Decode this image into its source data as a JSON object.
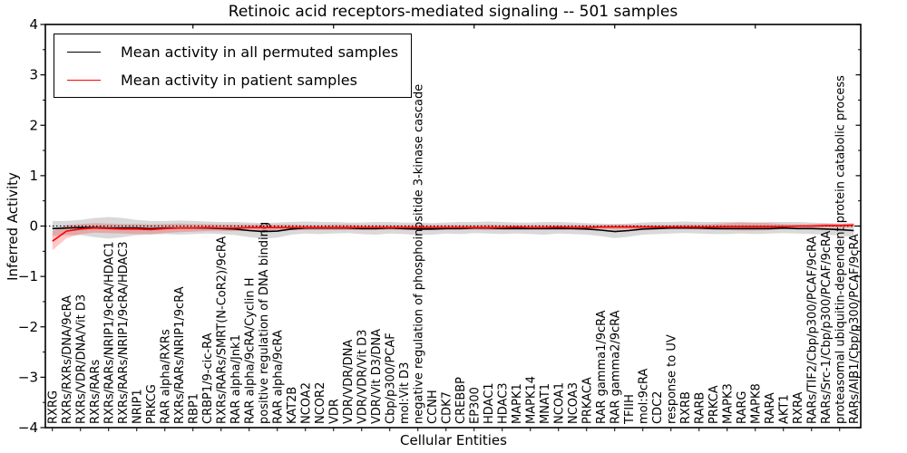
{
  "chart_data": {
    "type": "line",
    "title": "Retinoic acid receptors-mediated signaling -- 501 samples",
    "xlabel": "Cellular Entities",
    "ylabel": "Inferred Activity",
    "ylim": [
      -4,
      4
    ],
    "yticks": [
      4,
      3,
      2,
      1,
      0,
      -1,
      -2,
      -3,
      -4
    ],
    "y_minor_step": 0.5,
    "grid": false,
    "zero_reference_line": {
      "style": "dotted",
      "color": "#000000",
      "y": 0
    },
    "legend_position": "upper left",
    "categories": [
      "RXRG",
      "RXRs/RXRs/DNA/9cRA",
      "RXRs/VDR/DNA/Vit D3",
      "RXRs/RARs",
      "RXRs/RARs/NRIP1/9cRA/HDAC1",
      "RXRs/RARs/NRIP1/9cRA/HDAC3",
      "NRIP1",
      "PRKCG",
      "RAR alpha/RXRs",
      "RXRs/RARs/NRIP1/9cRA",
      "RBP1",
      "CRBP1/9-cic-RA",
      "RXRs/RARs/SMRT(N-CoR2)/9cRA",
      "RAR alpha/Jnk1",
      "RAR alpha/9cRA/Cyclin H",
      "positive regulation of DNA binding",
      "RAR alpha/9cRA",
      "KAT2B",
      "NCOA2",
      "NCOR2",
      "VDR",
      "VDR/VDR/DNA",
      "VDR/VDR/Vit D3",
      "VDR/Vit D3/DNA",
      "Cbp/p300/PCAF",
      "mol:Vit D3",
      "negative regulation of phosphoinositide 3-kinase cascade",
      "CCNH",
      "CDK7",
      "CREBBP",
      "EP300",
      "HDAC1",
      "HDAC3",
      "MAPK1",
      "MAPK14",
      "MNAT1",
      "NCOA1",
      "NCOA3",
      "PRKACA",
      "RAR gamma1/9cRA",
      "RAR gamma2/9cRA",
      "TFIIH",
      "mol:9cRA",
      "CDC2",
      "response to UV",
      "RXRB",
      "RARB",
      "PRKCA",
      "MAPK3",
      "RARG",
      "MAPK8",
      "RARA",
      "AKT1",
      "RXRA",
      "RARs/TIF2/Cbp/p300/PCAF/9cRA",
      "RARs/Src-1/Cbp/p300/PCAF/9cRA",
      "proteasomal ubiquitin-dependent protein catabolic process",
      "RARs/AIB1/Cbp/p300/PCAF/9cRA"
    ],
    "series": [
      {
        "name": "Mean activity in all permuted samples",
        "color": "#000000",
        "band_color": "#000000",
        "band_opacity": 0.15,
        "values": [
          -0.05,
          -0.04,
          -0.03,
          -0.03,
          -0.04,
          -0.04,
          -0.04,
          -0.05,
          -0.04,
          -0.04,
          -0.04,
          -0.04,
          -0.05,
          -0.06,
          -0.09,
          -0.11,
          -0.1,
          -0.06,
          -0.04,
          -0.04,
          -0.04,
          -0.04,
          -0.05,
          -0.05,
          -0.04,
          -0.05,
          -0.06,
          -0.06,
          -0.05,
          -0.05,
          -0.04,
          -0.04,
          -0.05,
          -0.05,
          -0.05,
          -0.05,
          -0.05,
          -0.05,
          -0.06,
          -0.08,
          -0.11,
          -0.09,
          -0.06,
          -0.05,
          -0.04,
          -0.04,
          -0.04,
          -0.05,
          -0.05,
          -0.05,
          -0.05,
          -0.05,
          -0.04,
          -0.05,
          -0.05,
          -0.06,
          -0.07,
          -0.09
        ],
        "band_upper": [
          0.1,
          0.1,
          0.12,
          0.16,
          0.18,
          0.16,
          0.12,
          0.1,
          0.1,
          0.11,
          0.1,
          0.09,
          0.08,
          0.08,
          0.07,
          0.06,
          0.07,
          0.08,
          0.09,
          0.08,
          0.08,
          0.07,
          0.07,
          0.08,
          0.08,
          0.07,
          0.07,
          0.06,
          0.07,
          0.08,
          0.08,
          0.09,
          0.08,
          0.07,
          0.07,
          0.08,
          0.08,
          0.07,
          0.06,
          0.05,
          0.04,
          0.05,
          0.07,
          0.08,
          0.08,
          0.09,
          0.08,
          0.08,
          0.08,
          0.08,
          0.07,
          0.08,
          0.08,
          0.08,
          0.07,
          0.06,
          0.05,
          0.05
        ],
        "band_lower": [
          -0.2,
          -0.18,
          -0.18,
          -0.22,
          -0.25,
          -0.22,
          -0.18,
          -0.17,
          -0.16,
          -0.17,
          -0.16,
          -0.15,
          -0.16,
          -0.18,
          -0.22,
          -0.25,
          -0.23,
          -0.17,
          -0.15,
          -0.16,
          -0.15,
          -0.14,
          -0.16,
          -0.17,
          -0.15,
          -0.16,
          -0.18,
          -0.17,
          -0.15,
          -0.16,
          -0.14,
          -0.15,
          -0.16,
          -0.15,
          -0.16,
          -0.17,
          -0.15,
          -0.16,
          -0.17,
          -0.2,
          -0.24,
          -0.21,
          -0.17,
          -0.16,
          -0.15,
          -0.14,
          -0.15,
          -0.16,
          -0.16,
          -0.15,
          -0.16,
          -0.15,
          -0.14,
          -0.15,
          -0.16,
          -0.17,
          -0.19,
          -0.22
        ]
      },
      {
        "name": "Mean activity in patient samples",
        "color": "#ff0000",
        "band_color": "#ff0000",
        "band_opacity": 0.22,
        "values": [
          -0.3,
          -0.1,
          -0.06,
          -0.04,
          -0.05,
          -0.06,
          -0.06,
          -0.07,
          -0.05,
          -0.04,
          -0.04,
          -0.03,
          -0.04,
          -0.04,
          -0.03,
          -0.03,
          -0.03,
          -0.03,
          -0.03,
          -0.03,
          -0.03,
          -0.03,
          -0.03,
          -0.03,
          -0.03,
          -0.03,
          -0.03,
          -0.03,
          -0.03,
          -0.03,
          -0.03,
          -0.03,
          -0.03,
          -0.02,
          -0.03,
          -0.03,
          -0.02,
          -0.03,
          -0.03,
          -0.02,
          -0.02,
          -0.02,
          -0.02,
          -0.02,
          -0.02,
          -0.02,
          -0.02,
          -0.02,
          -0.01,
          -0.01,
          -0.01,
          -0.01,
          -0.01,
          0.0,
          0.0,
          0.01,
          0.01,
          0.02
        ],
        "band_upper": [
          -0.1,
          0.02,
          0.04,
          0.06,
          0.05,
          0.04,
          0.04,
          0.03,
          0.04,
          0.05,
          0.04,
          0.04,
          0.03,
          0.03,
          0.03,
          0.03,
          0.03,
          0.03,
          0.02,
          0.02,
          0.03,
          0.03,
          0.02,
          0.02,
          0.02,
          0.02,
          0.02,
          0.02,
          0.02,
          0.02,
          0.02,
          0.03,
          0.02,
          0.02,
          0.02,
          0.02,
          0.02,
          0.02,
          0.02,
          0.02,
          0.03,
          0.03,
          0.02,
          0.02,
          0.02,
          0.03,
          0.03,
          0.04,
          0.06,
          0.07,
          0.07,
          0.06,
          0.04,
          0.03,
          0.04,
          0.05,
          0.05,
          0.06
        ],
        "band_lower": [
          -0.48,
          -0.24,
          -0.16,
          -0.13,
          -0.14,
          -0.15,
          -0.16,
          -0.16,
          -0.14,
          -0.12,
          -0.11,
          -0.1,
          -0.1,
          -0.1,
          -0.09,
          -0.09,
          -0.08,
          -0.08,
          -0.08,
          -0.08,
          -0.08,
          -0.08,
          -0.08,
          -0.08,
          -0.07,
          -0.08,
          -0.08,
          -0.08,
          -0.07,
          -0.07,
          -0.07,
          -0.08,
          -0.07,
          -0.07,
          -0.07,
          -0.07,
          -0.07,
          -0.07,
          -0.07,
          -0.06,
          -0.07,
          -0.07,
          -0.06,
          -0.06,
          -0.06,
          -0.06,
          -0.07,
          -0.07,
          -0.08,
          -0.09,
          -0.09,
          -0.08,
          -0.06,
          -0.05,
          -0.04,
          -0.03,
          -0.03,
          -0.03
        ]
      }
    ]
  },
  "legend": {
    "items": [
      {
        "label": "Mean activity in all permuted samples",
        "color": "#000000"
      },
      {
        "label": "Mean activity in patient samples",
        "color": "#ff0000"
      }
    ]
  }
}
